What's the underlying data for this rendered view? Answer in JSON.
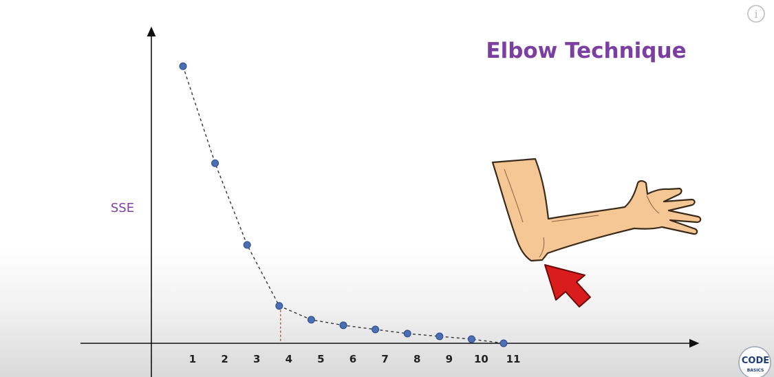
{
  "chart_data": {
    "type": "line",
    "title": "Elbow Technique",
    "ylabel": "SSE",
    "xlabel": "",
    "x": [
      1,
      2,
      3,
      4,
      5,
      6,
      7,
      8,
      9,
      10,
      11
    ],
    "tick_labels": [
      "1",
      "2",
      "3",
      "4",
      "5",
      "6",
      "7",
      "8",
      "9",
      "10",
      "11"
    ],
    "values": [
      100,
      65,
      35.5,
      13.5,
      8.5,
      6.5,
      5,
      3.5,
      2.5,
      1.5,
      0
    ],
    "ylim": [
      0,
      110
    ],
    "elbow_k": 4,
    "grid": false,
    "line_style": "dashed",
    "point_color": "#4a6fb5",
    "line_color": "#333333",
    "elbow_marker_color": "#b03030"
  },
  "ui": {
    "info_icon": "i",
    "badge": {
      "main": "CODE",
      "sub": "BASICS"
    }
  }
}
